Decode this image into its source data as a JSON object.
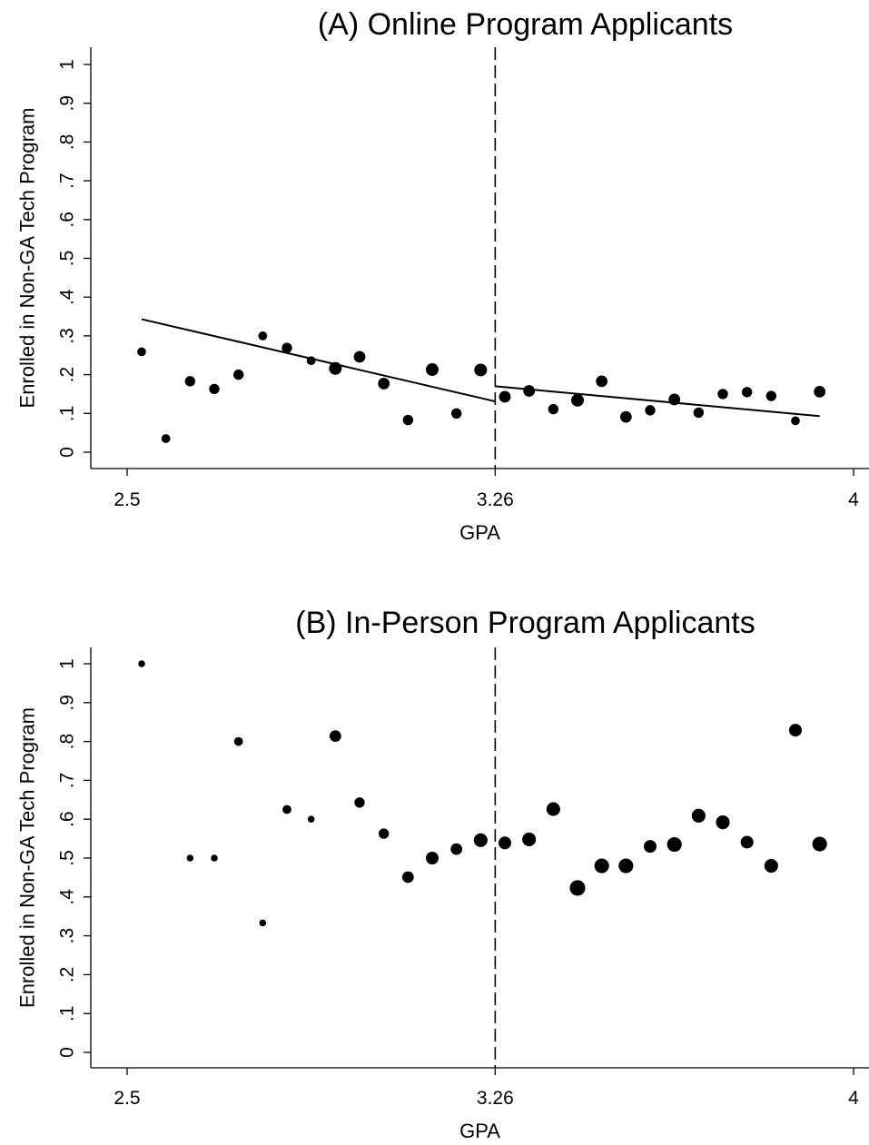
{
  "chart_data": [
    {
      "type": "scatter",
      "title": "(A) Online Program Applicants",
      "xlabel": "GPA",
      "ylabel": "Enrolled in Non-GA Tech Program",
      "xlim": [
        2.5,
        4.0
      ],
      "ylim": [
        0,
        1
      ],
      "xticks": [
        "2.5",
        "3.26",
        "4"
      ],
      "yticks": [
        "0",
        ".1",
        ".2",
        ".3",
        ".4",
        ".5",
        ".6",
        ".7",
        ".8",
        ".9",
        "1"
      ],
      "cutoff": 3.26,
      "cutoff_style": "dashed",
      "grid": false,
      "marker_size_note": "marker area proportional to bin count",
      "points": [
        {
          "x": 2.53,
          "y": 0.259,
          "w": 2
        },
        {
          "x": 2.58,
          "y": 0.035,
          "w": 2
        },
        {
          "x": 2.63,
          "y": 0.183,
          "w": 3
        },
        {
          "x": 2.68,
          "y": 0.163,
          "w": 3
        },
        {
          "x": 2.73,
          "y": 0.2,
          "w": 3
        },
        {
          "x": 2.78,
          "y": 0.3,
          "w": 2
        },
        {
          "x": 2.83,
          "y": 0.269,
          "w": 3
        },
        {
          "x": 2.88,
          "y": 0.236,
          "w": 2
        },
        {
          "x": 2.93,
          "y": 0.216,
          "w": 5
        },
        {
          "x": 2.98,
          "y": 0.246,
          "w": 4
        },
        {
          "x": 3.03,
          "y": 0.177,
          "w": 4
        },
        {
          "x": 3.08,
          "y": 0.083,
          "w": 3
        },
        {
          "x": 3.13,
          "y": 0.213,
          "w": 5
        },
        {
          "x": 3.18,
          "y": 0.1,
          "w": 3
        },
        {
          "x": 3.23,
          "y": 0.212,
          "w": 5
        },
        {
          "x": 3.28,
          "y": 0.143,
          "w": 4
        },
        {
          "x": 3.33,
          "y": 0.158,
          "w": 4
        },
        {
          "x": 3.38,
          "y": 0.111,
          "w": 3
        },
        {
          "x": 3.43,
          "y": 0.134,
          "w": 5
        },
        {
          "x": 3.48,
          "y": 0.183,
          "w": 4
        },
        {
          "x": 3.53,
          "y": 0.091,
          "w": 4
        },
        {
          "x": 3.58,
          "y": 0.108,
          "w": 3
        },
        {
          "x": 3.63,
          "y": 0.136,
          "w": 4
        },
        {
          "x": 3.68,
          "y": 0.102,
          "w": 3
        },
        {
          "x": 3.73,
          "y": 0.15,
          "w": 3
        },
        {
          "x": 3.78,
          "y": 0.155,
          "w": 3
        },
        {
          "x": 3.83,
          "y": 0.145,
          "w": 3
        },
        {
          "x": 3.88,
          "y": 0.081,
          "w": 2
        },
        {
          "x": 3.93,
          "y": 0.156,
          "w": 4
        }
      ],
      "fit_lines": [
        {
          "x": [
            2.53,
            3.26
          ],
          "y": [
            0.343,
            0.131
          ]
        },
        {
          "x": [
            3.26,
            3.93
          ],
          "y": [
            0.17,
            0.093
          ]
        }
      ]
    },
    {
      "type": "scatter",
      "title": "(B) In-Person Program Applicants",
      "xlabel": "GPA",
      "ylabel": "Enrolled in Non-GA Tech Program",
      "xlim": [
        2.5,
        4.0
      ],
      "ylim": [
        0,
        1
      ],
      "xticks": [
        "2.5",
        "3.26",
        "4"
      ],
      "yticks": [
        "0",
        ".1",
        ".2",
        ".3",
        ".4",
        ".5",
        ".6",
        ".7",
        ".8",
        ".9",
        "1"
      ],
      "cutoff": 3.26,
      "cutoff_style": "dashed",
      "grid": false,
      "marker_size_note": "marker area proportional to bin count",
      "points": [
        {
          "x": 2.53,
          "y": 1.0,
          "w": 1
        },
        {
          "x": 2.63,
          "y": 0.5,
          "w": 1
        },
        {
          "x": 2.68,
          "y": 0.5,
          "w": 1
        },
        {
          "x": 2.73,
          "y": 0.8,
          "w": 2
        },
        {
          "x": 2.78,
          "y": 0.333,
          "w": 1
        },
        {
          "x": 2.83,
          "y": 0.625,
          "w": 2
        },
        {
          "x": 2.88,
          "y": 0.6,
          "w": 1
        },
        {
          "x": 2.93,
          "y": 0.814,
          "w": 4
        },
        {
          "x": 2.98,
          "y": 0.643,
          "w": 3
        },
        {
          "x": 3.03,
          "y": 0.563,
          "w": 3
        },
        {
          "x": 3.08,
          "y": 0.451,
          "w": 4
        },
        {
          "x": 3.13,
          "y": 0.5,
          "w": 5
        },
        {
          "x": 3.18,
          "y": 0.523,
          "w": 4
        },
        {
          "x": 3.23,
          "y": 0.546,
          "w": 6
        },
        {
          "x": 3.28,
          "y": 0.539,
          "w": 5
        },
        {
          "x": 3.33,
          "y": 0.548,
          "w": 6
        },
        {
          "x": 3.38,
          "y": 0.626,
          "w": 6
        },
        {
          "x": 3.43,
          "y": 0.423,
          "w": 8
        },
        {
          "x": 3.48,
          "y": 0.48,
          "w": 7
        },
        {
          "x": 3.53,
          "y": 0.48,
          "w": 7
        },
        {
          "x": 3.58,
          "y": 0.53,
          "w": 5
        },
        {
          "x": 3.63,
          "y": 0.535,
          "w": 7
        },
        {
          "x": 3.68,
          "y": 0.609,
          "w": 6
        },
        {
          "x": 3.73,
          "y": 0.592,
          "w": 6
        },
        {
          "x": 3.78,
          "y": 0.541,
          "w": 5
        },
        {
          "x": 3.83,
          "y": 0.48,
          "w": 6
        },
        {
          "x": 3.88,
          "y": 0.829,
          "w": 5
        },
        {
          "x": 3.93,
          "y": 0.536,
          "w": 7
        }
      ],
      "fit_lines": []
    }
  ]
}
